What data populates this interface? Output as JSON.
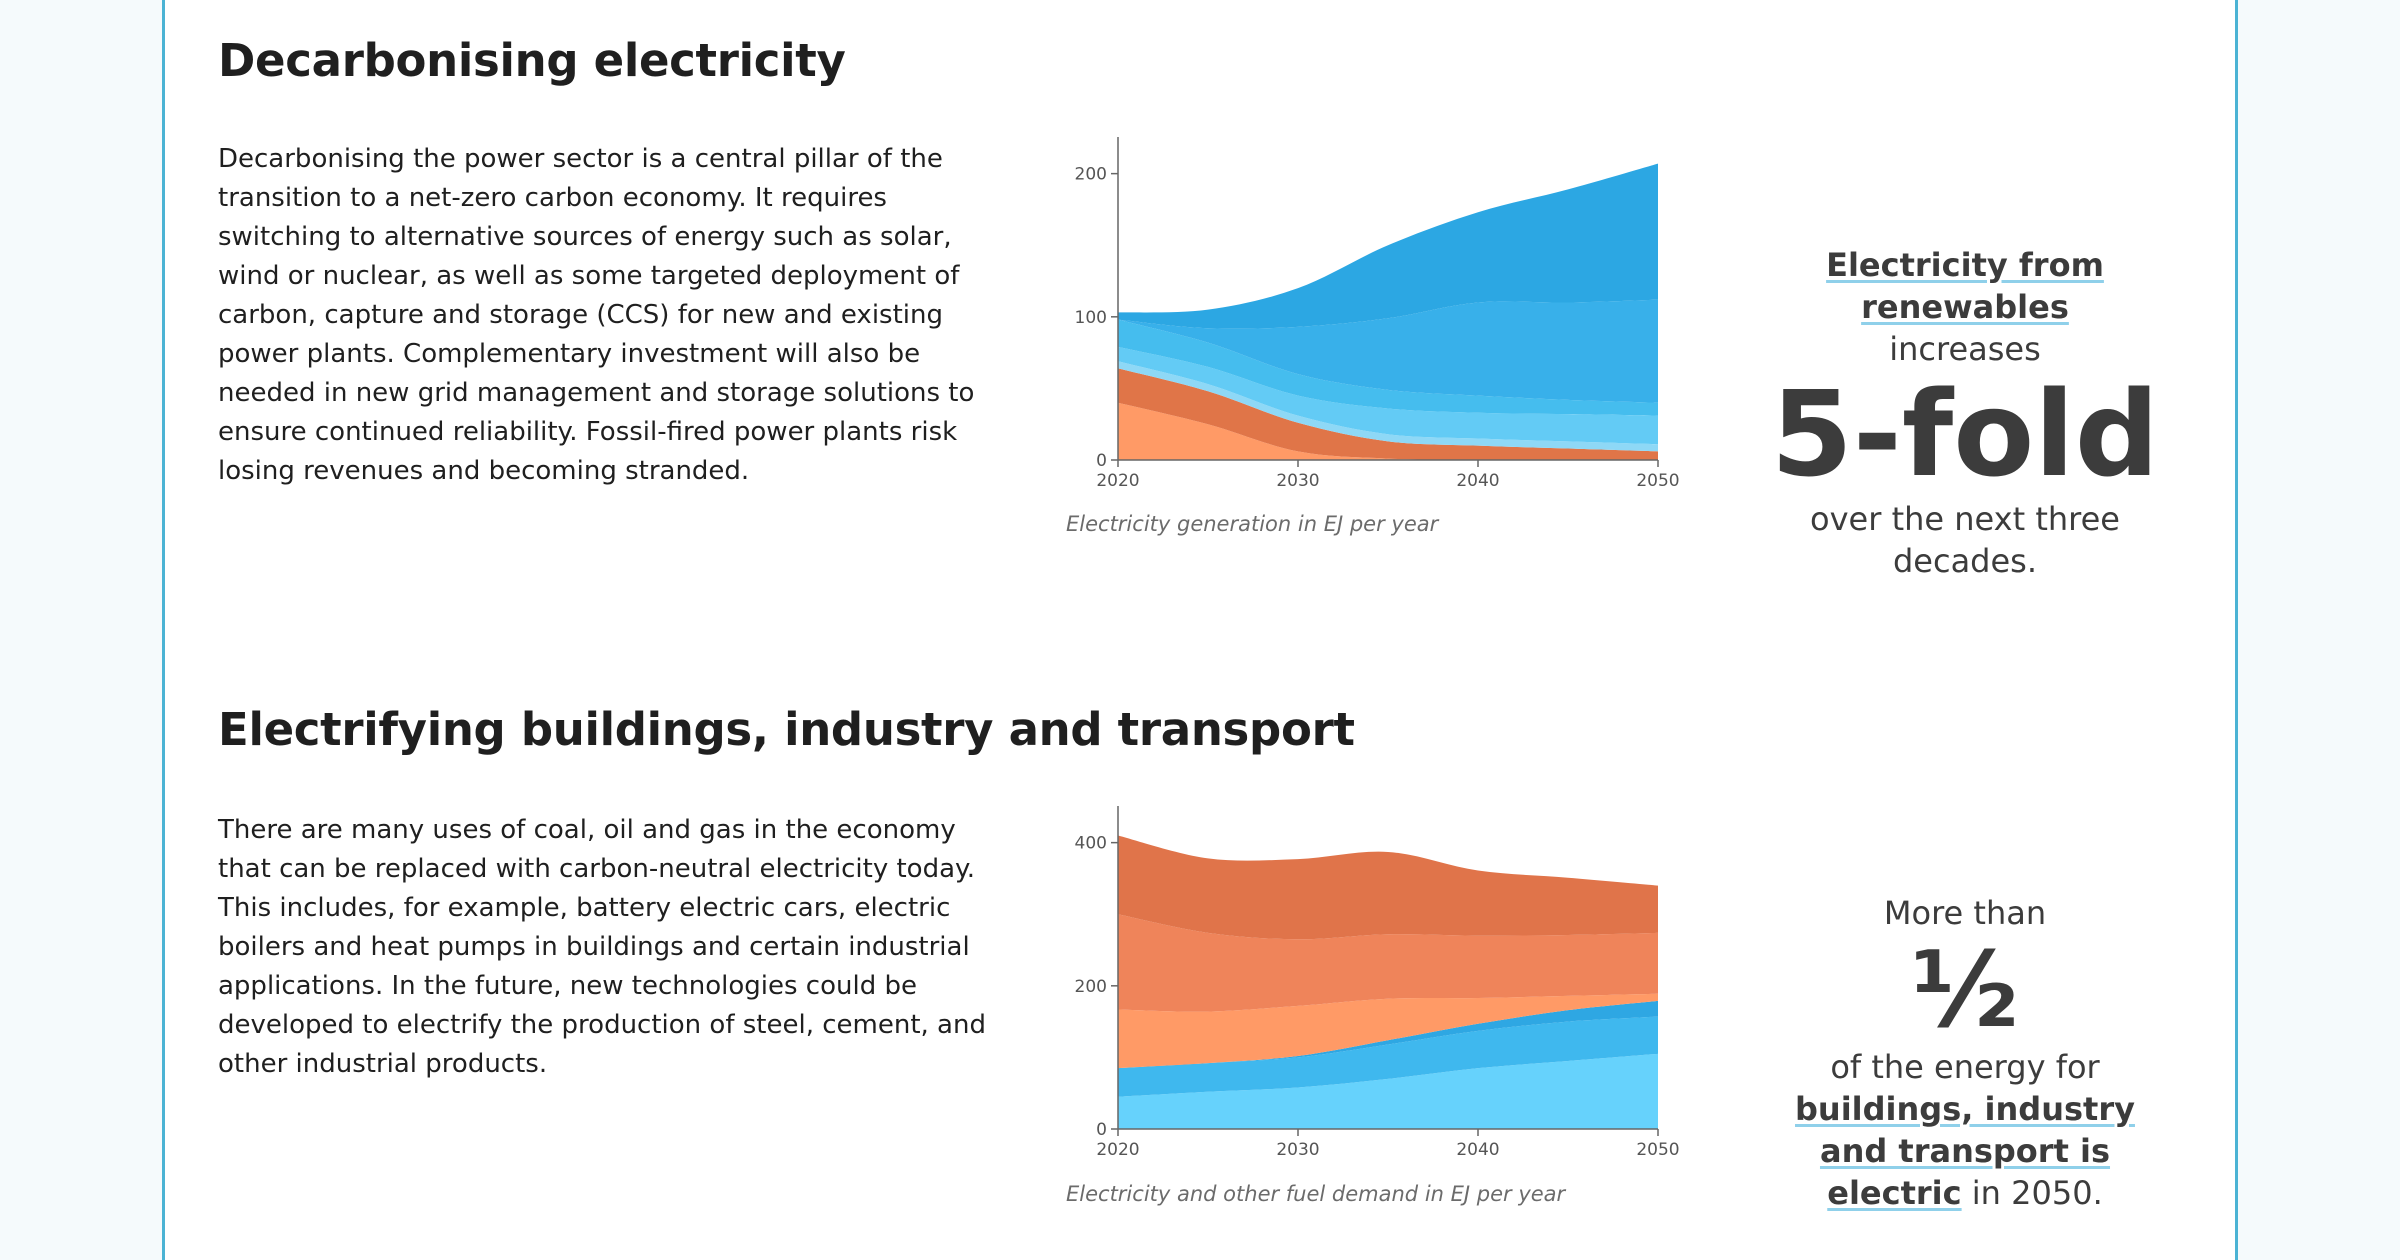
{
  "sections": [
    {
      "title": "Decarbonising electricity",
      "paragraph": "Decarbonising the power sector is a central pillar of the transition to a net-zero carbon economy. It requires switching to alternative sources of energy such as solar, wind or nuclear, as well as some targeted deployment of carbon, capture and storage (CCS) for new and existing power plants. Complementary investment will also be needed in new grid management and storage solutions to ensure continued reliability. Fossil-fired power plants risk losing revenues and becoming stranded.",
      "caption": "Electricity generation in EJ per year",
      "stat": {
        "highlight": "Electricity from renewables",
        "line2": "increases",
        "big": "5-fold",
        "line4": "over the next three decades."
      }
    },
    {
      "title": "Electrifying buildings, industry and transport",
      "paragraph": "There are many uses of coal, oil and gas in the economy that can be replaced with carbon-neutral electricity today. This includes, for example, battery electric cars, electric boilers and heat pumps in buildings and certain industrial applications. In the future, new technologies could be developed to electrify the production of steel, cement, and other industrial products.",
      "caption": "Electricity and other fuel demand in EJ per year",
      "stat": {
        "pre": "More than",
        "big": "½",
        "text1": "of the energy for ",
        "highlight": "buildings, industry and transport is electric",
        "text2": " in 2050."
      }
    }
  ],
  "chart_data": [
    {
      "type": "area",
      "stacked": true,
      "x": [
        2020,
        2025,
        2030,
        2035,
        2040,
        2045,
        2050
      ],
      "xticks": [
        "2020",
        "2030",
        "2040",
        "2050"
      ],
      "yticks": [
        "0",
        "100",
        "200"
      ],
      "xlim": [
        2020,
        2050
      ],
      "ylim": [
        0,
        220
      ],
      "grid": false,
      "legend": "none",
      "series": [
        {
          "color": "#ff9a66",
          "values": [
            40,
            25,
            6,
            1,
            0,
            0,
            0
          ]
        },
        {
          "color": "#e07548",
          "values": [
            24,
            23,
            20,
            12,
            10,
            8,
            6
          ]
        },
        {
          "color": "#8ed8f6",
          "values": [
            5,
            5,
            5,
            5,
            5,
            5,
            5
          ]
        },
        {
          "color": "#63cbf5",
          "values": [
            10,
            12,
            14,
            18,
            18,
            19,
            20
          ]
        },
        {
          "color": "#45bdee",
          "values": [
            19,
            17,
            15,
            13,
            12,
            10,
            9
          ]
        },
        {
          "color": "#38b0ea",
          "values": [
            0,
            10,
            33,
            50,
            65,
            68,
            72
          ]
        },
        {
          "color": "#2ca7e3",
          "values": [
            5,
            13,
            27,
            51,
            63,
            79,
            95
          ]
        }
      ]
    },
    {
      "type": "area",
      "stacked": true,
      "x": [
        2020,
        2025,
        2030,
        2035,
        2040,
        2045,
        2050
      ],
      "xticks": [
        "2020",
        "2030",
        "2040",
        "2050"
      ],
      "yticks": [
        "0",
        "200",
        "400"
      ],
      "xlim": [
        2020,
        2050
      ],
      "ylim": [
        0,
        440
      ],
      "grid": false,
      "legend": "none",
      "series": [
        {
          "color": "#66d2fc",
          "values": [
            45,
            52,
            58,
            70,
            85,
            95,
            105
          ]
        },
        {
          "color": "#3fb8ee",
          "values": [
            40,
            40,
            42,
            48,
            52,
            55,
            52
          ]
        },
        {
          "color": "#2ea7e3",
          "values": [
            0,
            0,
            2,
            6,
            10,
            16,
            22
          ]
        },
        {
          "color": "#ff9a66",
          "values": [
            82,
            72,
            70,
            58,
            36,
            20,
            10
          ]
        },
        {
          "color": "#ef845a",
          "values": [
            133,
            110,
            93,
            90,
            87,
            85,
            85
          ]
        },
        {
          "color": "#e0744a",
          "values": [
            110,
            104,
            112,
            115,
            91,
            80,
            66
          ]
        }
      ]
    }
  ]
}
